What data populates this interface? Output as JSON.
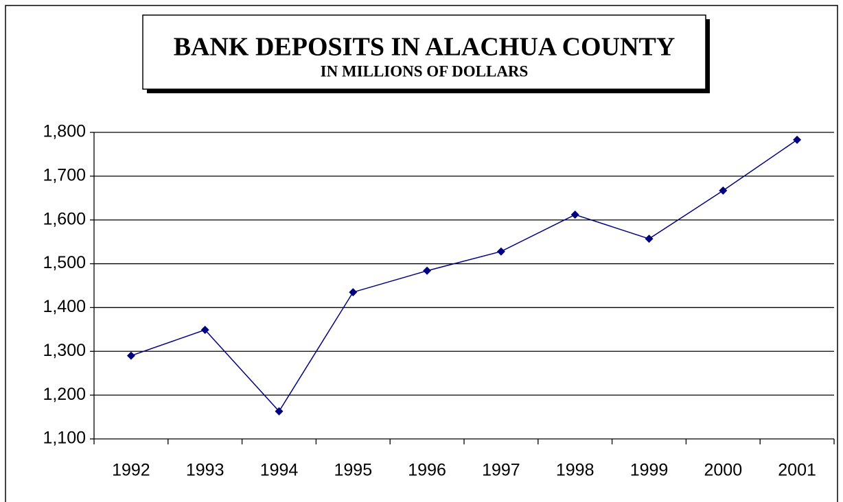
{
  "chart_data": {
    "type": "line",
    "title": "BANK DEPOSITS IN ALACHUA COUNTY",
    "subtitle": "IN MILLIONS OF DOLLARS",
    "categories": [
      "1992",
      "1993",
      "1994",
      "1995",
      "1996",
      "1997",
      "1998",
      "1999",
      "2000",
      "2001"
    ],
    "values": [
      1290,
      1349,
      1163,
      1435,
      1484,
      1528,
      1612,
      1557,
      1667,
      1783
    ],
    "color": "#000080",
    "ylim": [
      1100,
      1800
    ],
    "yticks": [
      {
        "value": 1100,
        "label": "1,100"
      },
      {
        "value": 1200,
        "label": "1,200"
      },
      {
        "value": 1300,
        "label": "1,300"
      },
      {
        "value": 1400,
        "label": "1,400"
      },
      {
        "value": 1500,
        "label": "1,500"
      },
      {
        "value": 1600,
        "label": "1,600"
      },
      {
        "value": 1700,
        "label": "1,700"
      },
      {
        "value": 1800,
        "label": "1,800"
      }
    ],
    "grid": true
  }
}
